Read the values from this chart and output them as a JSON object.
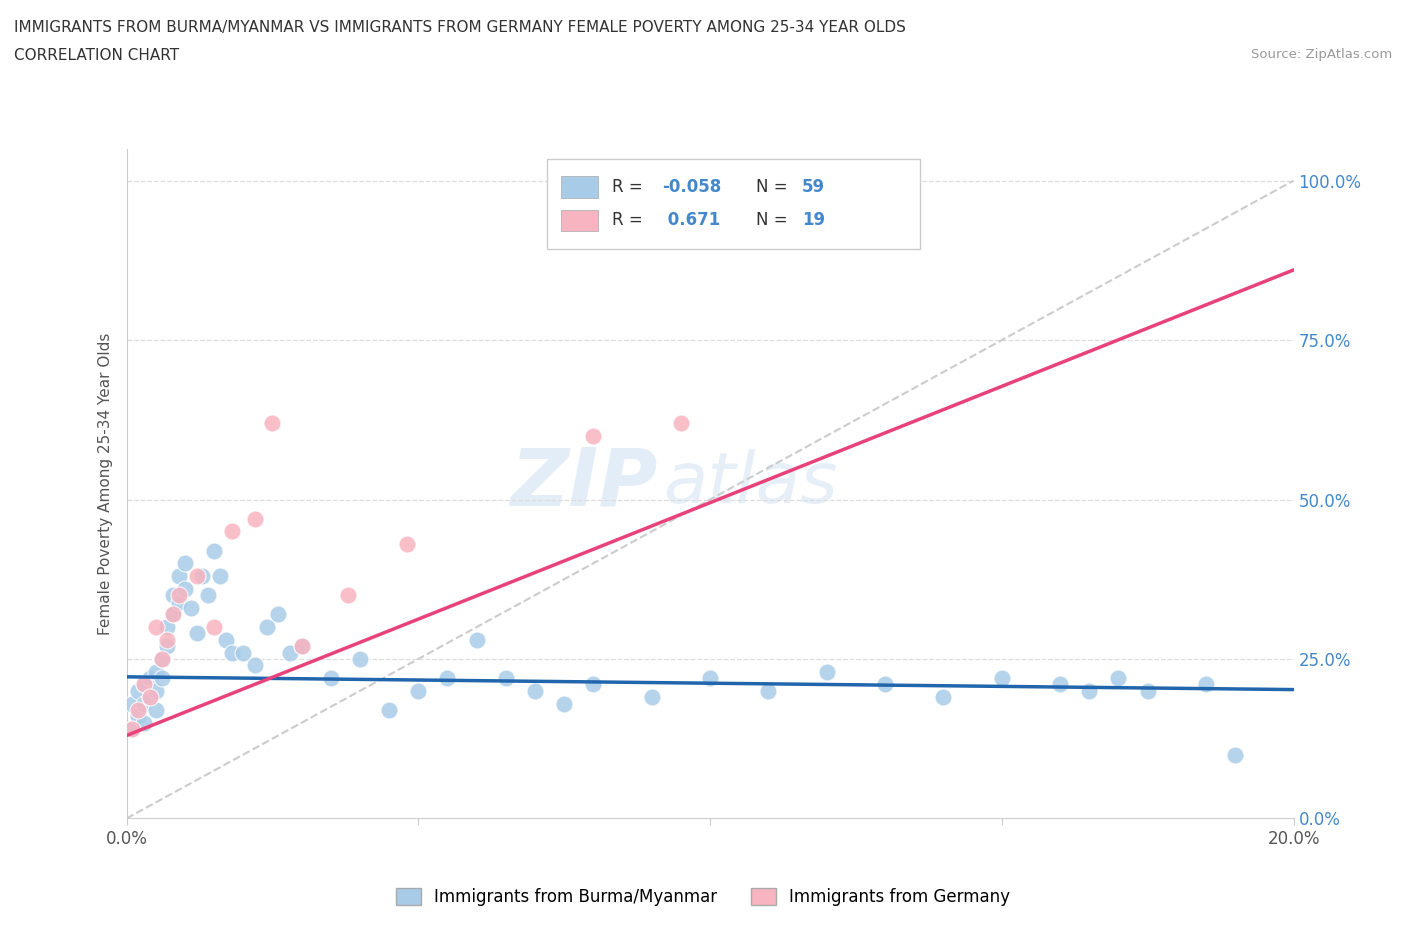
{
  "title": "IMMIGRANTS FROM BURMA/MYANMAR VS IMMIGRANTS FROM GERMANY FEMALE POVERTY AMONG 25-34 YEAR OLDS",
  "subtitle": "CORRELATION CHART",
  "source": "Source: ZipAtlas.com",
  "ylabel": "Female Poverty Among 25-34 Year Olds",
  "xlim": [
    0.0,
    0.2
  ],
  "ylim": [
    0.0,
    1.05
  ],
  "right_yticks": [
    0.0,
    0.25,
    0.5,
    0.75,
    1.0
  ],
  "right_yticklabels": [
    "0.0%",
    "25.0%",
    "50.0%",
    "75.0%",
    "100.0%"
  ],
  "xticks": [
    0.0,
    0.05,
    0.1,
    0.15,
    0.2
  ],
  "xticklabels": [
    "0.0%",
    "",
    "",
    "",
    "20.0%"
  ],
  "legend_r1": "R = -0.058",
  "legend_n1": "N = 59",
  "legend_r2": "R =  0.671",
  "legend_n2": "N = 19",
  "color_burma": "#a8cce8",
  "color_germany": "#f8b4c0",
  "color_burma_line": "#2166ac",
  "color_germany_line": "#e8427a",
  "color_diagonal": "#cccccc",
  "watermark_zip": "ZIP",
  "watermark_atlas": "atlas",
  "burma_x": [
    0.001,
    0.001,
    0.002,
    0.002,
    0.003,
    0.003,
    0.003,
    0.004,
    0.004,
    0.005,
    0.005,
    0.005,
    0.006,
    0.006,
    0.007,
    0.007,
    0.008,
    0.008,
    0.009,
    0.009,
    0.01,
    0.01,
    0.011,
    0.012,
    0.013,
    0.014,
    0.015,
    0.016,
    0.017,
    0.018,
    0.02,
    0.022,
    0.024,
    0.026,
    0.028,
    0.03,
    0.035,
    0.04,
    0.045,
    0.05,
    0.055,
    0.06,
    0.065,
    0.07,
    0.075,
    0.08,
    0.09,
    0.1,
    0.11,
    0.12,
    0.13,
    0.14,
    0.15,
    0.16,
    0.165,
    0.17,
    0.175,
    0.185,
    0.19
  ],
  "burma_y": [
    0.18,
    0.14,
    0.2,
    0.16,
    0.21,
    0.18,
    0.15,
    0.22,
    0.19,
    0.17,
    0.23,
    0.2,
    0.25,
    0.22,
    0.3,
    0.27,
    0.35,
    0.32,
    0.38,
    0.34,
    0.4,
    0.36,
    0.33,
    0.29,
    0.38,
    0.35,
    0.42,
    0.38,
    0.28,
    0.26,
    0.26,
    0.24,
    0.3,
    0.32,
    0.26,
    0.27,
    0.22,
    0.25,
    0.17,
    0.2,
    0.22,
    0.28,
    0.22,
    0.2,
    0.18,
    0.21,
    0.19,
    0.22,
    0.2,
    0.23,
    0.21,
    0.19,
    0.22,
    0.21,
    0.2,
    0.22,
    0.2,
    0.21,
    0.1
  ],
  "germany_x": [
    0.001,
    0.002,
    0.003,
    0.004,
    0.005,
    0.006,
    0.007,
    0.008,
    0.009,
    0.012,
    0.015,
    0.018,
    0.022,
    0.025,
    0.03,
    0.038,
    0.048,
    0.08,
    0.095
  ],
  "germany_y": [
    0.14,
    0.17,
    0.21,
    0.19,
    0.3,
    0.25,
    0.28,
    0.32,
    0.35,
    0.38,
    0.3,
    0.45,
    0.47,
    0.62,
    0.27,
    0.35,
    0.43,
    0.6,
    0.62
  ]
}
